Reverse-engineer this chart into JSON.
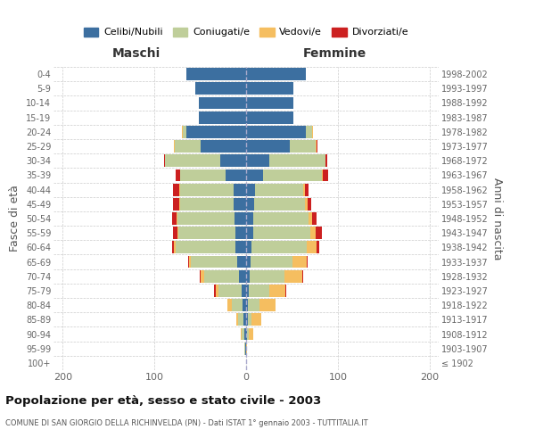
{
  "age_groups": [
    "100+",
    "95-99",
    "90-94",
    "85-89",
    "80-84",
    "75-79",
    "70-74",
    "65-69",
    "60-64",
    "55-59",
    "50-54",
    "45-49",
    "40-44",
    "35-39",
    "30-34",
    "25-29",
    "20-24",
    "15-19",
    "10-14",
    "5-9",
    "0-4"
  ],
  "birth_years": [
    "≤ 1902",
    "1903-1907",
    "1908-1912",
    "1913-1917",
    "1918-1922",
    "1923-1927",
    "1928-1932",
    "1933-1937",
    "1938-1942",
    "1943-1947",
    "1948-1952",
    "1953-1957",
    "1958-1962",
    "1963-1967",
    "1968-1972",
    "1973-1977",
    "1978-1982",
    "1983-1987",
    "1988-1992",
    "1993-1997",
    "1998-2002"
  ],
  "maschi": {
    "celibi": [
      0,
      1,
      2,
      3,
      4,
      5,
      8,
      10,
      12,
      12,
      13,
      14,
      14,
      22,
      28,
      50,
      65,
      52,
      52,
      55,
      65
    ],
    "coniugati": [
      0,
      1,
      3,
      6,
      12,
      25,
      38,
      50,
      65,
      62,
      62,
      58,
      58,
      50,
      60,
      28,
      4,
      0,
      0,
      0,
      0
    ],
    "vedovi": [
      0,
      0,
      1,
      2,
      4,
      3,
      4,
      2,
      2,
      1,
      1,
      1,
      1,
      0,
      0,
      1,
      1,
      0,
      0,
      0,
      0
    ],
    "divorziati": [
      0,
      0,
      0,
      0,
      0,
      2,
      1,
      1,
      2,
      5,
      5,
      7,
      7,
      5,
      1,
      0,
      0,
      0,
      0,
      0,
      0
    ]
  },
  "femmine": {
    "nubili": [
      0,
      0,
      1,
      2,
      2,
      3,
      4,
      5,
      6,
      8,
      8,
      9,
      10,
      18,
      25,
      48,
      65,
      52,
      52,
      52,
      65
    ],
    "coniugate": [
      0,
      0,
      2,
      4,
      13,
      22,
      38,
      46,
      60,
      62,
      60,
      55,
      52,
      65,
      62,
      28,
      7,
      0,
      0,
      0,
      0
    ],
    "vedove": [
      0,
      1,
      5,
      11,
      17,
      18,
      19,
      15,
      11,
      6,
      4,
      3,
      2,
      1,
      0,
      1,
      1,
      0,
      0,
      0,
      0
    ],
    "divorziate": [
      0,
      0,
      0,
      0,
      0,
      1,
      1,
      1,
      3,
      7,
      5,
      4,
      4,
      5,
      1,
      1,
      0,
      0,
      0,
      0,
      0
    ]
  },
  "colors": {
    "celibi": "#3C6FA0",
    "coniugati": "#BFCE9A",
    "vedovi": "#F5BE60",
    "divorziati": "#CC2020"
  },
  "legend_labels": [
    "Celibi/Nubili",
    "Coniugati/e",
    "Vedovi/e",
    "Divorziati/e"
  ],
  "title": "Popolazione per età, sesso e stato civile - 2003",
  "subtitle": "COMUNE DI SAN GIORGIO DELLA RICHINVELDA (PN) - Dati ISTAT 1° gennaio 2003 - TUTTITALIA.IT",
  "ylabel_left": "Fasce di età",
  "ylabel_right": "Anni di nascita",
  "xlabel_maschi": "Maschi",
  "xlabel_femmine": "Femmine",
  "xlim": 210,
  "background_color": "#ffffff",
  "grid_color": "#cccccc"
}
